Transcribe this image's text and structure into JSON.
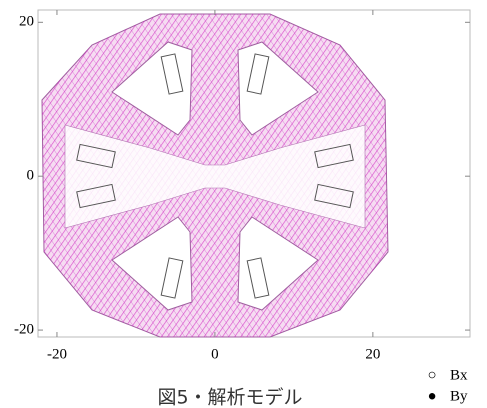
{
  "axes": {
    "xlim": [
      -22.4,
      32.3
    ],
    "ylim": [
      -20.9,
      21.6
    ],
    "xticks": [
      -20,
      0,
      20
    ],
    "yticks": [
      -20,
      0,
      20
    ]
  },
  "legend": [
    {
      "symbol": "○",
      "label": "Bx"
    },
    {
      "symbol": "●",
      "label": "By"
    }
  ],
  "caption": "図5・解析モデル"
}
